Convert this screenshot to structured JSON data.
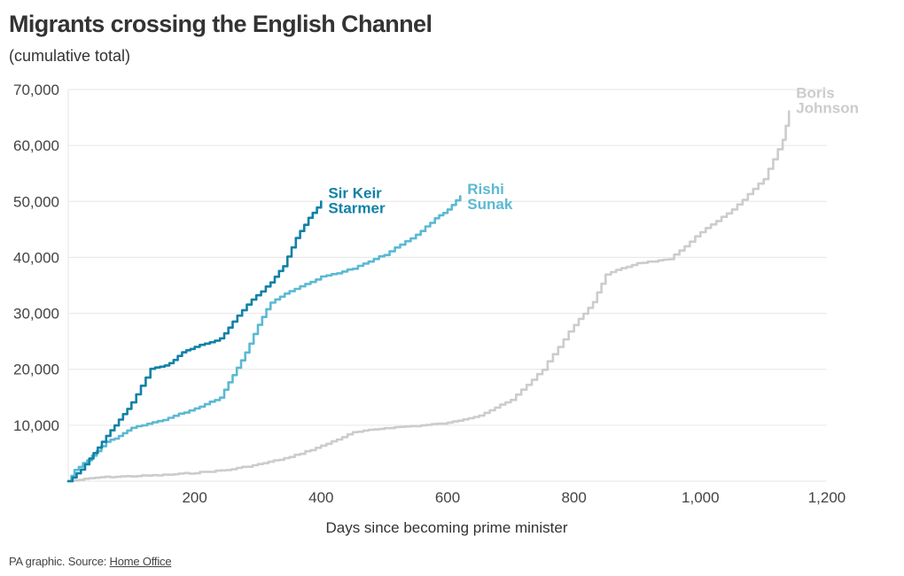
{
  "header": {
    "title": "Migrants crossing the English Channel",
    "subtitle": "(cumulative total)"
  },
  "footer": {
    "prefix": "PA graphic. Source: ",
    "source_link": "Home Office"
  },
  "chart_data": {
    "type": "line",
    "title": "Migrants crossing the English Channel",
    "subtitle": "(cumulative total)",
    "xlabel": "Days since becoming prime minister",
    "ylabel": "",
    "xlim": [
      0,
      1200
    ],
    "ylim": [
      0,
      70000
    ],
    "x_ticks": [
      200,
      400,
      600,
      800,
      1000,
      1200
    ],
    "x_tick_labels": [
      "200",
      "400",
      "600",
      "800",
      "1,000",
      "1,200"
    ],
    "y_ticks": [
      10000,
      20000,
      30000,
      40000,
      50000,
      60000,
      70000
    ],
    "y_tick_labels": [
      "10,000",
      "20,000",
      "30,000",
      "40,000",
      "50,000",
      "60,000",
      "70,000"
    ],
    "grid": "horizontal",
    "series": [
      {
        "name_lines": [
          "Boris",
          "Johnson"
        ],
        "color": "#cccccc",
        "points": [
          [
            0,
            0
          ],
          [
            50,
            700
          ],
          [
            100,
            900
          ],
          [
            150,
            1100
          ],
          [
            200,
            1500
          ],
          [
            250,
            2000
          ],
          [
            300,
            3000
          ],
          [
            350,
            4300
          ],
          [
            400,
            6300
          ],
          [
            450,
            8700
          ],
          [
            500,
            9500
          ],
          [
            550,
            9900
          ],
          [
            600,
            10400
          ],
          [
            650,
            11800
          ],
          [
            700,
            14500
          ],
          [
            750,
            20000
          ],
          [
            800,
            28000
          ],
          [
            830,
            32000
          ],
          [
            850,
            37000
          ],
          [
            900,
            39000
          ],
          [
            950,
            39600
          ],
          [
            1000,
            44500
          ],
          [
            1050,
            48500
          ],
          [
            1100,
            54000
          ],
          [
            1130,
            61000
          ],
          [
            1140,
            66000
          ]
        ]
      },
      {
        "name_lines": [
          "Rishi",
          "Sunak"
        ],
        "color": "#5bb9d3",
        "points": [
          [
            0,
            0
          ],
          [
            10,
            2000
          ],
          [
            30,
            3800
          ],
          [
            60,
            7000
          ],
          [
            80,
            8000
          ],
          [
            100,
            9500
          ],
          [
            150,
            11000
          ],
          [
            200,
            13000
          ],
          [
            240,
            15000
          ],
          [
            260,
            19000
          ],
          [
            280,
            23000
          ],
          [
            300,
            28000
          ],
          [
            320,
            32000
          ],
          [
            350,
            34000
          ],
          [
            400,
            36500
          ],
          [
            450,
            38000
          ],
          [
            500,
            40500
          ],
          [
            550,
            44000
          ],
          [
            580,
            47000
          ],
          [
            600,
            48500
          ],
          [
            620,
            51000
          ]
        ]
      },
      {
        "name_lines": [
          "Sir Keir",
          "Starmer"
        ],
        "color": "#1181a6",
        "points": [
          [
            0,
            0
          ],
          [
            20,
            2000
          ],
          [
            40,
            5000
          ],
          [
            60,
            8000
          ],
          [
            80,
            11000
          ],
          [
            100,
            14000
          ],
          [
            130,
            20000
          ],
          [
            160,
            21000
          ],
          [
            180,
            23000
          ],
          [
            200,
            24000
          ],
          [
            240,
            25500
          ],
          [
            260,
            28500
          ],
          [
            290,
            32500
          ],
          [
            320,
            35500
          ],
          [
            340,
            38500
          ],
          [
            360,
            43500
          ],
          [
            380,
            47000
          ],
          [
            400,
            50000
          ]
        ]
      }
    ]
  }
}
